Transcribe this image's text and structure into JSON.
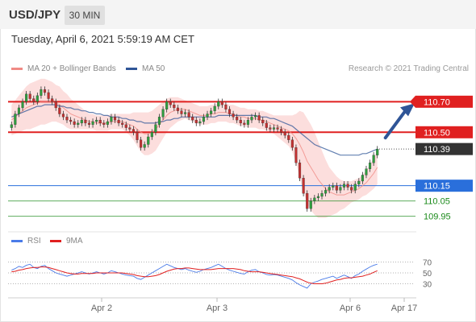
{
  "header": {
    "symbol": "USD/JPY",
    "timeframe": "30 MIN"
  },
  "timestamp": "Tuesday, April 6, 2021 5:59:19 AM CET",
  "legend": [
    {
      "label": "MA 20 + Bollinger Bands",
      "color": "#f08a85"
    },
    {
      "label": "MA 50",
      "color": "#2f5597"
    }
  ],
  "credit": "Research © 2021 Trading Central",
  "chart_data": {
    "type": "candlestick",
    "x_ticks": [
      "Apr 2",
      "Apr 3",
      "Apr 6",
      "Apr 17"
    ],
    "ylim": [
      109.89,
      110.86
    ],
    "last_price": 110.39,
    "levels": [
      {
        "value": 110.7,
        "label": "110.70",
        "kind": "resistance",
        "color": "#e02020"
      },
      {
        "value": 110.5,
        "label": "110.50",
        "kind": "resistance",
        "color": "#e02020"
      },
      {
        "value": 110.39,
        "label": "110.39",
        "kind": "last",
        "color": "#333333"
      },
      {
        "value": 110.15,
        "label": "110.15",
        "kind": "pivot",
        "color": "#2a6fdb"
      },
      {
        "value": 110.05,
        "label": "110.05",
        "kind": "support",
        "color": "#1a8a1a"
      },
      {
        "value": 109.95,
        "label": "109.95",
        "kind": "support",
        "color": "#1a8a1a"
      }
    ],
    "close": [
      110.55,
      110.62,
      110.66,
      110.7,
      110.75,
      110.72,
      110.7,
      110.74,
      110.78,
      110.76,
      110.72,
      110.7,
      110.66,
      110.62,
      110.6,
      110.58,
      110.57,
      110.55,
      110.56,
      110.58,
      110.56,
      110.55,
      110.57,
      110.58,
      110.56,
      110.55,
      110.57,
      110.6,
      110.58,
      110.56,
      110.55,
      110.53,
      110.52,
      110.5,
      110.45,
      110.4,
      110.42,
      110.47,
      110.5,
      110.55,
      110.6,
      110.65,
      110.7,
      110.68,
      110.66,
      110.64,
      110.62,
      110.63,
      110.6,
      110.58,
      110.56,
      110.57,
      110.6,
      110.62,
      110.64,
      110.67,
      110.7,
      110.68,
      110.65,
      110.62,
      110.6,
      110.58,
      110.56,
      110.55,
      110.58,
      110.6,
      110.61,
      110.58,
      110.56,
      110.53,
      110.52,
      110.53,
      110.52,
      110.5,
      110.48,
      110.45,
      110.4,
      110.3,
      110.2,
      110.1,
      110.0,
      110.05,
      110.07,
      110.08,
      110.1,
      110.12,
      110.14,
      110.15,
      110.12,
      110.14,
      110.16,
      110.14,
      110.12,
      110.16,
      110.18,
      110.22,
      110.26,
      110.3,
      110.35,
      110.39
    ],
    "series": [
      {
        "name": "MA 20 + Bollinger Bands",
        "color": "#f08a85",
        "values": [
          110.58,
          110.6,
          110.62,
          110.64,
          110.66,
          110.67,
          110.68,
          110.69,
          110.7,
          110.7,
          110.7,
          110.7,
          110.69,
          110.68,
          110.66,
          110.64,
          110.62,
          110.61,
          110.6,
          110.59,
          110.58,
          110.57,
          110.57,
          110.56,
          110.56,
          110.56,
          110.56,
          110.57,
          110.57,
          110.57,
          110.57,
          110.56,
          110.55,
          110.54,
          110.52,
          110.5,
          110.49,
          110.49,
          110.5,
          110.52,
          110.55,
          110.58,
          110.61,
          110.63,
          110.64,
          110.65,
          110.65,
          110.65,
          110.64,
          110.63,
          110.62,
          110.61,
          110.61,
          110.61,
          110.62,
          110.62,
          110.63,
          110.63,
          110.63,
          110.62,
          110.62,
          110.61,
          110.6,
          110.6,
          110.59,
          110.59,
          110.59,
          110.58,
          110.58,
          110.57,
          110.56,
          110.55,
          110.54,
          110.53,
          110.52,
          110.51,
          110.49,
          110.46,
          110.42,
          110.37,
          110.31,
          110.27,
          110.23,
          110.19,
          110.16,
          110.13,
          110.11,
          110.1,
          110.09,
          110.09,
          110.09,
          110.1,
          110.11,
          110.12,
          110.13,
          110.15,
          110.17,
          110.2,
          110.23,
          110.27
        ]
      },
      {
        "name": "MA 50",
        "color": "#2f5597",
        "values": [
          110.6,
          110.61,
          110.62,
          110.63,
          110.64,
          110.65,
          110.66,
          110.67,
          110.67,
          110.68,
          110.68,
          110.68,
          110.68,
          110.67,
          110.67,
          110.66,
          110.66,
          110.65,
          110.65,
          110.64,
          110.64,
          110.63,
          110.63,
          110.62,
          110.62,
          110.61,
          110.61,
          110.6,
          110.6,
          110.6,
          110.59,
          110.59,
          110.58,
          110.58,
          110.57,
          110.57,
          110.56,
          110.56,
          110.56,
          110.56,
          110.57,
          110.57,
          110.58,
          110.58,
          110.59,
          110.59,
          110.6,
          110.6,
          110.6,
          110.6,
          110.6,
          110.6,
          110.6,
          110.6,
          110.6,
          110.6,
          110.61,
          110.61,
          110.61,
          110.61,
          110.61,
          110.61,
          110.61,
          110.61,
          110.61,
          110.61,
          110.61,
          110.6,
          110.6,
          110.6,
          110.59,
          110.59,
          110.58,
          110.57,
          110.56,
          110.55,
          110.54,
          110.52,
          110.5,
          110.48,
          110.46,
          110.44,
          110.42,
          110.41,
          110.4,
          110.39,
          110.38,
          110.37,
          110.36,
          110.35,
          110.35,
          110.35,
          110.35,
          110.35,
          110.35,
          110.36,
          110.36,
          110.37,
          110.38,
          110.39
        ]
      }
    ],
    "bollinger_width": [
      0.1,
      0.11,
      0.12,
      0.13,
      0.14,
      0.15,
      0.15,
      0.15,
      0.15,
      0.15,
      0.14,
      0.13,
      0.12,
      0.12,
      0.11,
      0.11,
      0.1,
      0.09,
      0.08,
      0.07,
      0.06,
      0.05,
      0.05,
      0.05,
      0.05,
      0.05,
      0.05,
      0.05,
      0.05,
      0.05,
      0.05,
      0.06,
      0.07,
      0.09,
      0.11,
      0.13,
      0.14,
      0.14,
      0.14,
      0.14,
      0.13,
      0.12,
      0.11,
      0.1,
      0.09,
      0.08,
      0.07,
      0.06,
      0.06,
      0.06,
      0.06,
      0.06,
      0.06,
      0.06,
      0.06,
      0.06,
      0.06,
      0.06,
      0.06,
      0.06,
      0.06,
      0.06,
      0.06,
      0.06,
      0.06,
      0.06,
      0.06,
      0.06,
      0.06,
      0.06,
      0.06,
      0.06,
      0.07,
      0.08,
      0.09,
      0.1,
      0.12,
      0.16,
      0.22,
      0.26,
      0.28,
      0.28,
      0.27,
      0.25,
      0.22,
      0.19,
      0.16,
      0.14,
      0.12,
      0.1,
      0.09,
      0.08,
      0.07,
      0.07,
      0.07,
      0.07,
      0.08,
      0.09,
      0.1,
      0.11
    ],
    "rsi": {
      "legend": [
        "RSI",
        "9MA"
      ],
      "colors": [
        "#4a7be8",
        "#e02020"
      ],
      "levels": [
        70,
        50,
        30
      ],
      "ylim": [
        10,
        90
      ],
      "rsi": [
        55,
        58,
        62,
        60,
        64,
        66,
        60,
        58,
        62,
        64,
        58,
        54,
        50,
        48,
        46,
        44,
        46,
        48,
        50,
        52,
        50,
        48,
        50,
        52,
        50,
        48,
        50,
        54,
        52,
        50,
        48,
        46,
        45,
        44,
        40,
        38,
        42,
        46,
        50,
        54,
        58,
        62,
        66,
        63,
        60,
        58,
        56,
        58,
        55,
        53,
        51,
        53,
        56,
        58,
        60,
        63,
        66,
        62,
        58,
        55,
        53,
        51,
        49,
        48,
        52,
        55,
        56,
        52,
        50,
        47,
        46,
        47,
        46,
        44,
        42,
        40,
        37,
        32,
        28,
        25,
        22,
        30,
        33,
        35,
        38,
        40,
        42,
        44,
        40,
        43,
        46,
        43,
        40,
        45,
        48,
        53,
        57,
        61,
        64,
        66
      ],
      "ma9": [
        52,
        53,
        55,
        56,
        58,
        59,
        60,
        60,
        61,
        61,
        60,
        58,
        56,
        54,
        52,
        50,
        49,
        48,
        48,
        49,
        49,
        49,
        49,
        50,
        50,
        50,
        50,
        50,
        50,
        50,
        50,
        49,
        48,
        47,
        45,
        44,
        43,
        43,
        44,
        45,
        47,
        50,
        53,
        55,
        57,
        58,
        58,
        59,
        59,
        58,
        57,
        56,
        56,
        56,
        56,
        57,
        58,
        58,
        58,
        58,
        58,
        57,
        56,
        54,
        53,
        52,
        52,
        52,
        51,
        50,
        49,
        48,
        47,
        46,
        45,
        44,
        43,
        41,
        39,
        36,
        33,
        31,
        30,
        30,
        30,
        31,
        33,
        35,
        37,
        38,
        40,
        41,
        41,
        42,
        43,
        44,
        46,
        48,
        51,
        54
      ]
    }
  }
}
